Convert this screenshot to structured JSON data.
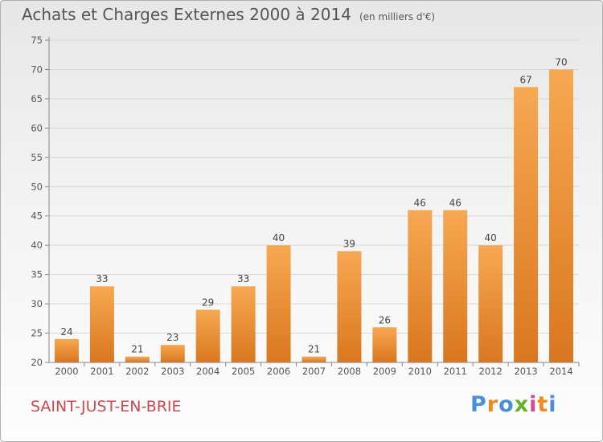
{
  "title": "Achats et Charges Externes 2000 à 2014",
  "unit": "(en milliers d'€)",
  "city": "SAINT-JUST-EN-BRIE",
  "brand": {
    "text": "Proxiti",
    "colors": [
      "#4a8fd8",
      "#f08b1d",
      "#4a8fd8",
      "#68b02a",
      "#d84a8f",
      "#f08b1d",
      "#4a8fd8"
    ]
  },
  "colors": {
    "bar_top": "#f7a852",
    "bar_bottom": "#d9771f",
    "grid": "#d6d6d6",
    "axis": "#888888"
  },
  "chart_data": {
    "type": "bar",
    "title": "Achats et Charges Externes 2000 à 2014",
    "xlabel": "",
    "ylabel": "(en milliers d'€)",
    "ylim": [
      20,
      75
    ],
    "yticks": [
      20,
      25,
      30,
      35,
      40,
      45,
      50,
      55,
      60,
      65,
      70,
      75
    ],
    "categories": [
      "2000",
      "2001",
      "2002",
      "2003",
      "2004",
      "2005",
      "2006",
      "2007",
      "2008",
      "2009",
      "2010",
      "2011",
      "2012",
      "2013",
      "2014"
    ],
    "values": [
      24,
      33,
      21,
      23,
      29,
      33,
      40,
      21,
      39,
      26,
      46,
      46,
      40,
      67,
      70
    ],
    "grid": true
  }
}
